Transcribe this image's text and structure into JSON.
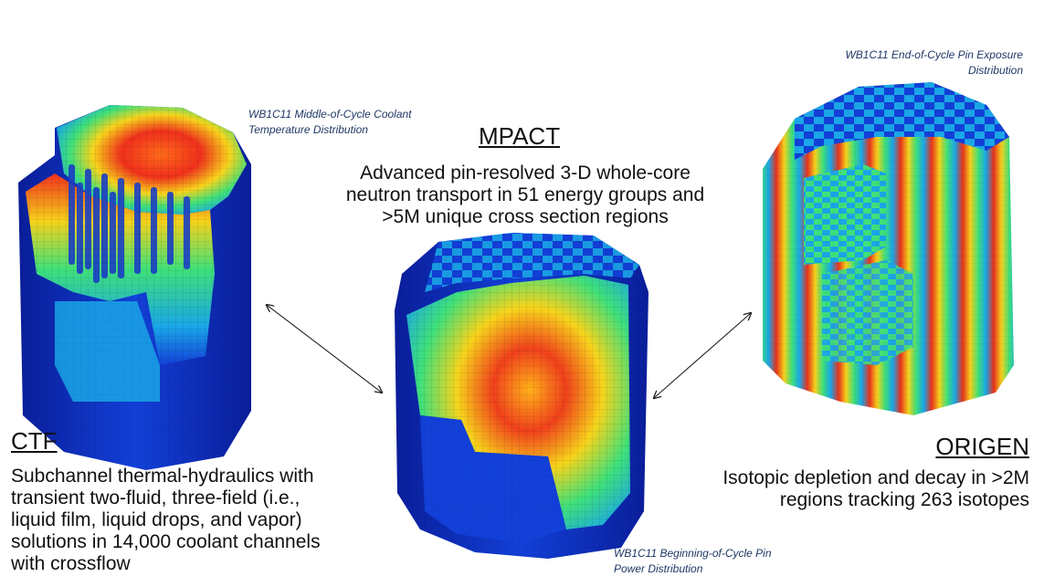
{
  "ctf": {
    "heading": "CTF",
    "description": [
      "Subchannel thermal-hydraulics with",
      "transient two-fluid, three-field (i.e.,",
      "liquid film, liquid drops, and vapor)",
      "solutions in 14,000 coolant channels",
      "with crossflow"
    ],
    "caption": [
      "WB1C11 Middle-of-Cycle Coolant",
      "Temperature Distribution"
    ]
  },
  "mpact": {
    "heading": "MPACT",
    "description": [
      "Advanced pin-resolved 3-D whole-core",
      "neutron transport in 51 energy groups and",
      ">5M unique cross section regions"
    ],
    "caption": [
      "WB1C11 Beginning-of-Cycle Pin",
      "Power Distribution"
    ]
  },
  "origen": {
    "heading": "ORIGEN",
    "description": [
      "Isotopic depletion and decay in >2M",
      "regions tracking 263 isotopes"
    ],
    "caption": [
      "WB1C11 End-of-Cycle Pin Exposure",
      "Distribution"
    ]
  },
  "colors": {
    "cold": "#0a2fbf",
    "cool": "#1aa6e8",
    "mid": "#3fe07a",
    "warm": "#f5d21b",
    "hot": "#e8321c"
  },
  "icons": {
    "arrow_left": "double-arrow-icon",
    "arrow_right": "double-arrow-icon"
  }
}
